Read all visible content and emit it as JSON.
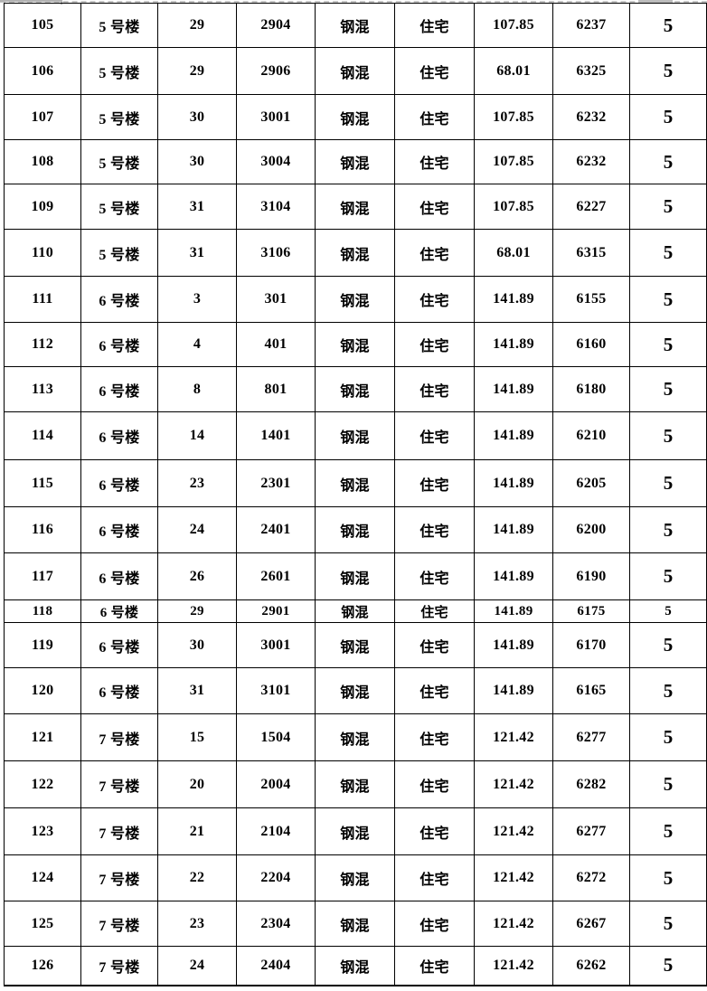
{
  "colors": {
    "background": "#ffffff",
    "table_border": "#000000",
    "text": "#000000",
    "page_break_gray": "#c6c6c6"
  },
  "table": {
    "rows": [
      {
        "seq": "105",
        "building": "5 号楼",
        "floor": "29",
        "room": "2904",
        "structure": "钢混",
        "use": "住宅",
        "area": "107.85",
        "price": "6237",
        "flag": "5"
      },
      {
        "seq": "106",
        "building": "5 号楼",
        "floor": "29",
        "room": "2906",
        "structure": "钢混",
        "use": "住宅",
        "area": "68.01",
        "price": "6325",
        "flag": "5"
      },
      {
        "seq": "107",
        "building": "5 号楼",
        "floor": "30",
        "room": "3001",
        "structure": "钢混",
        "use": "住宅",
        "area": "107.85",
        "price": "6232",
        "flag": "5"
      },
      {
        "seq": "108",
        "building": "5 号楼",
        "floor": "30",
        "room": "3004",
        "structure": "钢混",
        "use": "住宅",
        "area": "107.85",
        "price": "6232",
        "flag": "5"
      },
      {
        "seq": "109",
        "building": "5 号楼",
        "floor": "31",
        "room": "3104",
        "structure": "钢混",
        "use": "住宅",
        "area": "107.85",
        "price": "6227",
        "flag": "5"
      },
      {
        "seq": "110",
        "building": "5 号楼",
        "floor": "31",
        "room": "3106",
        "structure": "钢混",
        "use": "住宅",
        "area": "68.01",
        "price": "6315",
        "flag": "5"
      },
      {
        "seq": "111",
        "building": "6 号楼",
        "floor": "3",
        "room": "301",
        "structure": "钢混",
        "use": "住宅",
        "area": "141.89",
        "price": "6155",
        "flag": "5"
      },
      {
        "seq": "112",
        "building": "6 号楼",
        "floor": "4",
        "room": "401",
        "structure": "钢混",
        "use": "住宅",
        "area": "141.89",
        "price": "6160",
        "flag": "5"
      },
      {
        "seq": "113",
        "building": "6 号楼",
        "floor": "8",
        "room": "801",
        "structure": "钢混",
        "use": "住宅",
        "area": "141.89",
        "price": "6180",
        "flag": "5"
      },
      {
        "seq": "114",
        "building": "6 号楼",
        "floor": "14",
        "room": "1401",
        "structure": "钢混",
        "use": "住宅",
        "area": "141.89",
        "price": "6210",
        "flag": "5"
      },
      {
        "seq": "115",
        "building": "6 号楼",
        "floor": "23",
        "room": "2301",
        "structure": "钢混",
        "use": "住宅",
        "area": "141.89",
        "price": "6205",
        "flag": "5"
      },
      {
        "seq": "116",
        "building": "6 号楼",
        "floor": "24",
        "room": "2401",
        "structure": "钢混",
        "use": "住宅",
        "area": "141.89",
        "price": "6200",
        "flag": "5"
      },
      {
        "seq": "117",
        "building": "6 号楼",
        "floor": "26",
        "room": "2601",
        "structure": "钢混",
        "use": "住宅",
        "area": "141.89",
        "price": "6190",
        "flag": "5"
      },
      {
        "seq": "118",
        "building": "6 号楼",
        "floor": "29",
        "room": "2901",
        "structure": "钢混",
        "use": "住宅",
        "area": "141.89",
        "price": "6175",
        "flag": "5"
      },
      {
        "seq": "119",
        "building": "6 号楼",
        "floor": "30",
        "room": "3001",
        "structure": "钢混",
        "use": "住宅",
        "area": "141.89",
        "price": "6170",
        "flag": "5"
      },
      {
        "seq": "120",
        "building": "6 号楼",
        "floor": "31",
        "room": "3101",
        "structure": "钢混",
        "use": "住宅",
        "area": "141.89",
        "price": "6165",
        "flag": "5"
      },
      {
        "seq": "121",
        "building": "7 号楼",
        "floor": "15",
        "room": "1504",
        "structure": "钢混",
        "use": "住宅",
        "area": "121.42",
        "price": "6277",
        "flag": "5"
      },
      {
        "seq": "122",
        "building": "7 号楼",
        "floor": "20",
        "room": "2004",
        "structure": "钢混",
        "use": "住宅",
        "area": "121.42",
        "price": "6282",
        "flag": "5"
      },
      {
        "seq": "123",
        "building": "7 号楼",
        "floor": "21",
        "room": "2104",
        "structure": "钢混",
        "use": "住宅",
        "area": "121.42",
        "price": "6277",
        "flag": "5"
      },
      {
        "seq": "124",
        "building": "7 号楼",
        "floor": "22",
        "room": "2204",
        "structure": "钢混",
        "use": "住宅",
        "area": "121.42",
        "price": "6272",
        "flag": "5"
      },
      {
        "seq": "125",
        "building": "7 号楼",
        "floor": "23",
        "room": "2304",
        "structure": "钢混",
        "use": "住宅",
        "area": "121.42",
        "price": "6267",
        "flag": "5"
      },
      {
        "seq": "126",
        "building": "7 号楼",
        "floor": "24",
        "room": "2404",
        "structure": "钢混",
        "use": "住宅",
        "area": "121.42",
        "price": "6262",
        "flag": "5"
      }
    ]
  }
}
